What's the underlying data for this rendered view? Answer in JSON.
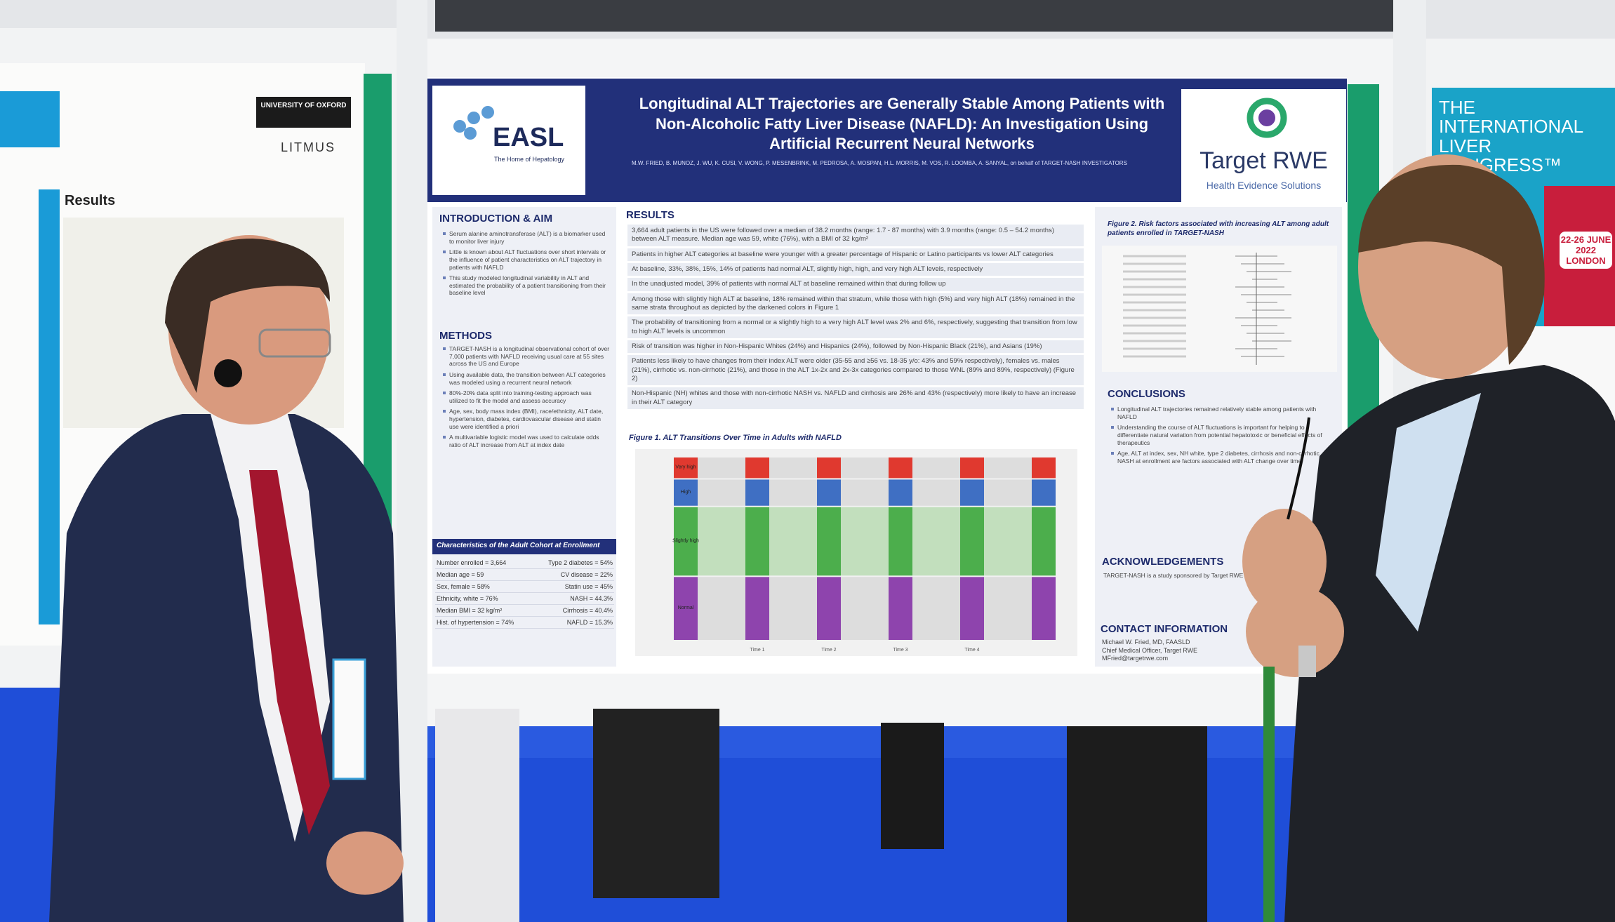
{
  "poster": {
    "title": "Longitudinal ALT Trajectories are Generally Stable Among Patients with Non-Alcoholic Fatty Liver Disease (NAFLD): An Investigation Using Artificial Recurrent Neural Networks",
    "authors": "M.W. FRIED, B. MUNOZ, J. WU, K. CUSI, V. WONG, P. MESENBRINK, M. PEDROSA, A. MOSPAN, H.L. MORRIS, M. VOS, R. LOOMBA, A. SANYAL, on behalf of TARGET-NASH INVESTIGATORS",
    "easl": {
      "name": "EASL",
      "tagline": "The Home of Hepatology"
    },
    "sponsor": {
      "name": "Target RWE",
      "tagline": "Health Evidence Solutions"
    },
    "intro": {
      "heading": "INTRODUCTION & AIM",
      "bullets": [
        "Serum alanine aminotransferase (ALT) is a biomarker used to monitor liver injury",
        "Little is known about ALT fluctuations over short intervals or the influence of patient characteristics on ALT trajectory in patients with NAFLD",
        "This study modeled longitudinal variability in ALT and estimated the probability of a patient transitioning from their baseline level"
      ]
    },
    "methods": {
      "heading": "METHODS",
      "bullets": [
        "TARGET-NASH is a longitudinal observational cohort of over 7,000 patients with NAFLD receiving usual care at 55 sites across the US and Europe",
        "Using available data, the transition between ALT categories was modeled using a recurrent neural network",
        "80%-20% data split into training-testing approach was utilized to fit the model and assess accuracy",
        "Age, sex, body mass index (BMI), race/ethnicity, ALT date, hypertension, diabetes, cardiovascular disease and statin use were identified a priori",
        "A multivariable logistic model was used to calculate odds ratio of ALT increase from ALT at index date"
      ]
    },
    "cohort": {
      "heading": "Characteristics of the Adult Cohort at Enrollment",
      "rows": [
        [
          "Number enrolled = 3,664",
          "Type 2 diabetes = 54%"
        ],
        [
          "Median age = 59",
          "CV disease = 22%"
        ],
        [
          "Sex, female = 58%",
          "Statin use = 45%"
        ],
        [
          "Ethnicity, white = 76%",
          "NASH = 44.3%"
        ],
        [
          "Median BMI = 32 kg/m²",
          "Cirrhosis = 40.4%"
        ],
        [
          "Hist. of hypertension = 74%",
          "NAFLD = 15.3%"
        ]
      ]
    },
    "results": {
      "heading": "RESULTS",
      "bullets": [
        "3,664 adult patients in the US were followed over a median of 38.2 months (range: 1.7 - 87 months) with 3.9 months (range: 0.5 – 54.2 months) between ALT measure. Median age was 59, white (76%), with a BMI of 32 kg/m²",
        "Patients in higher ALT categories at baseline were younger with a greater percentage of Hispanic or Latino participants vs lower ALT categories",
        "At baseline, 33%, 38%, 15%, 14% of patients had normal ALT, slightly high, high, and very high ALT levels, respectively",
        "In the unadjusted model, 39% of patients with normal ALT at baseline remained within that during follow up",
        "Among those with slightly high ALT at baseline, 18% remained within that stratum, while those with high (5%) and very high ALT (18%) remained in the same strata throughout as depicted by the darkened colors in Figure 1",
        "The probability of transitioning from a normal or a slightly high to a very high ALT level was 2% and 6%, respectively, suggesting that transition from low to high ALT levels is uncommon",
        "Risk of transition was higher in Non-Hispanic Whites (24%) and Hispanics (24%), followed by Non-Hispanic Black (21%), and Asians (19%)",
        "Patients less likely to have changes from their index ALT were older (35-55 and ≥56 vs. 18-35 y/o: 43% and 59% respectively), females vs. males (21%), cirrhotic vs. non-cirrhotic (21%), and those in the ALT 1x-2x and 2x-3x categories compared to those WNL (89% and 89%, respectively) (Figure 2)",
        "Non-Hispanic (NH) whites and those with non-cirrhotic NASH vs. NAFLD and cirrhosis are 26% and 43% (respectively) more likely to have an increase in their ALT category"
      ]
    },
    "figure1": {
      "caption": "Figure 1. ALT Transitions Over Time in Adults with NAFLD",
      "levels": [
        "Very high",
        "High",
        "Slightly high",
        "Normal"
      ],
      "times": [
        "Time 1",
        "Time 2",
        "Time 3",
        "Time 4"
      ]
    },
    "figure2": {
      "caption": "Figure 2. Risk factors associated with increasing ALT among adult patients enrolled in TARGET-NASH"
    },
    "conclusions": {
      "heading": "CONCLUSIONS",
      "bullets": [
        "Longitudinal ALT trajectories remained relatively stable among patients with NAFLD",
        "Understanding the course of ALT fluctuations is important for helping to differentiate natural variation from potential hepatotoxic or beneficial effects of therapeutics",
        "Age, ALT at index, sex, NH white, type 2 diabetes, cirrhosis and non-cirrhotic NASH at enrollment are factors associated with ALT change over time"
      ]
    },
    "acknowledgements": {
      "heading": "ACKNOWLEDGEMENTS",
      "text": "TARGET-NASH is a study sponsored by Target RWE in Durham, NC."
    },
    "contact": {
      "heading": "CONTACT INFORMATION",
      "lines": [
        "Michael W. Fried, MD, FAASLD",
        "Chief Medical Officer, Target RWE",
        "MFried@targetrwe.com"
      ]
    }
  },
  "left_poster": {
    "university": "UNIVERSITY OF OXFORD",
    "partner": "LITMUS",
    "heading": "Results"
  },
  "right_poster": {
    "congress": "THE INTERNATIONAL LIVER CONGRESS™",
    "dates": "22-26 JUNE 2022 LONDON"
  }
}
